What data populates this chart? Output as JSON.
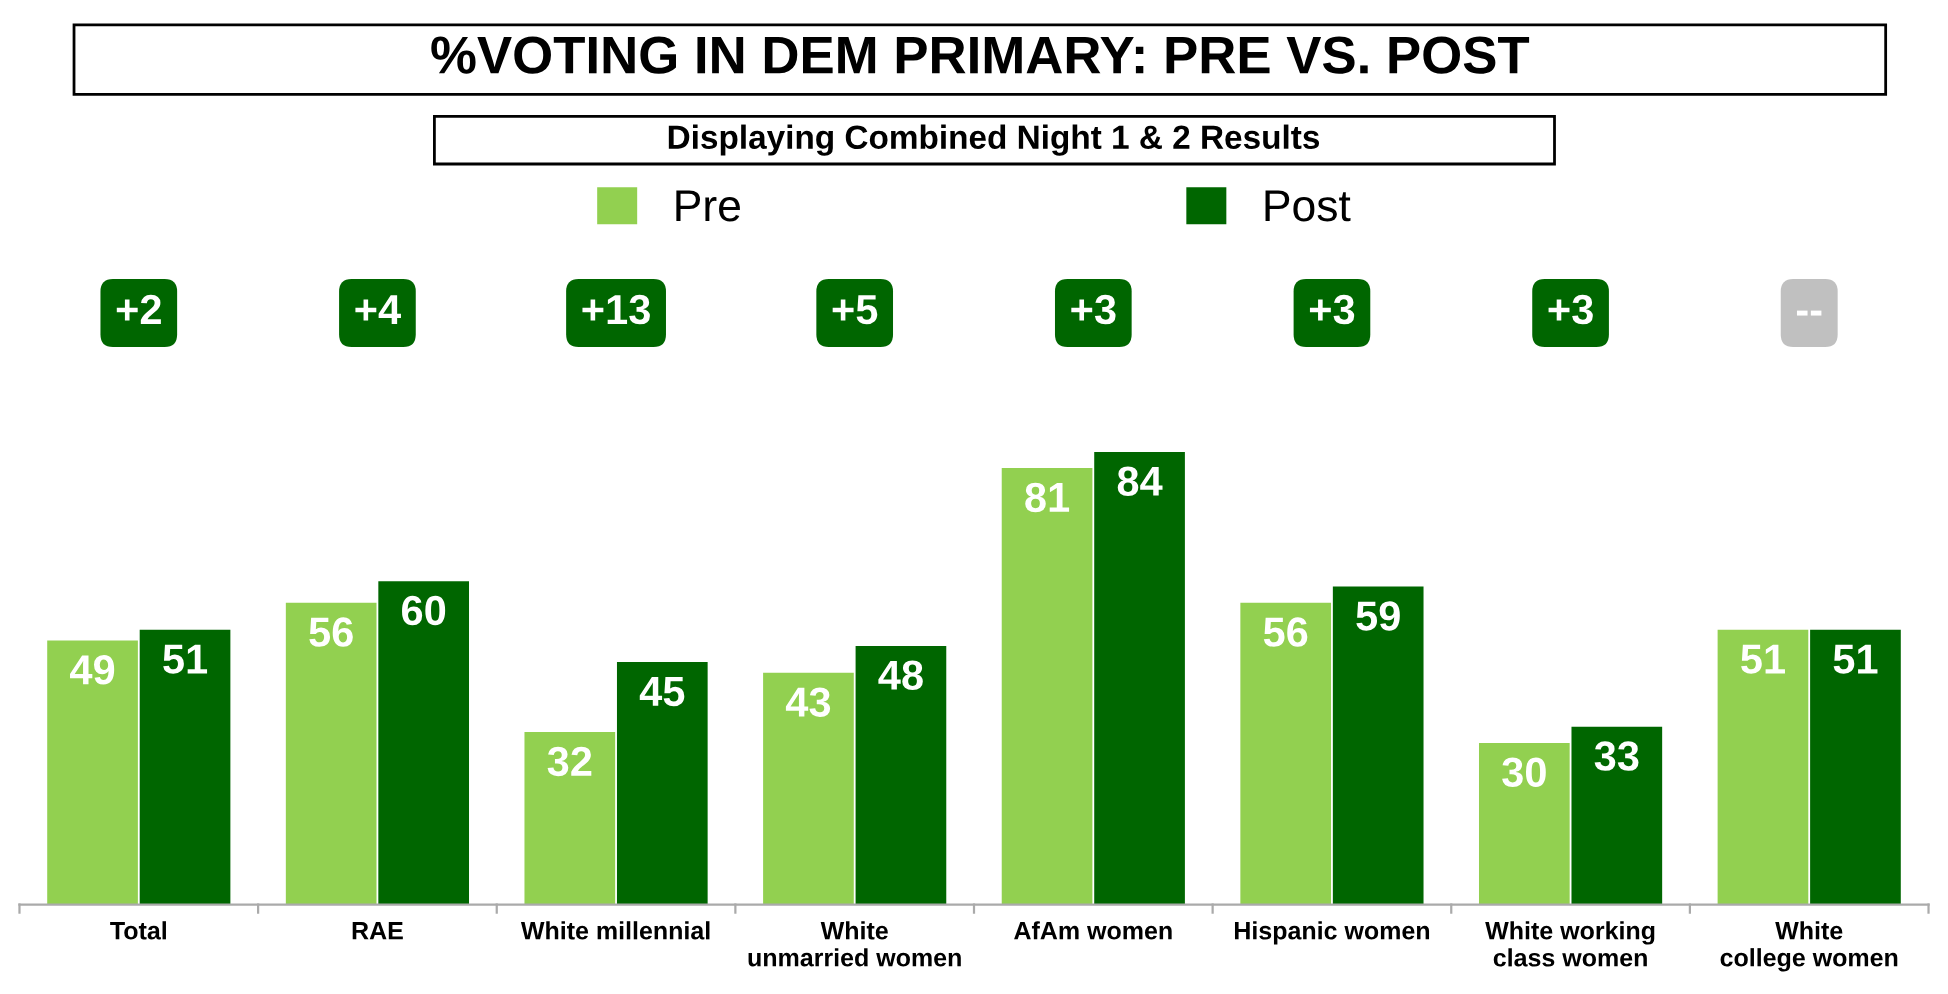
{
  "chart_data": {
    "type": "bar",
    "title": "%VOTING IN DEM PRIMARY: PRE VS. POST",
    "subtitle": "Displaying Combined Night 1 & 2 Results",
    "categories": [
      "Total",
      "RAE",
      "White millennial",
      "White unmarried women",
      "AfAm women",
      "Hispanic women",
      "White working class women",
      "White college women"
    ],
    "series": [
      {
        "name": "Pre",
        "color": "#92d050",
        "values": [
          49,
          56,
          32,
          43,
          81,
          56,
          30,
          51
        ]
      },
      {
        "name": "Post",
        "color": "#006600",
        "values": [
          51,
          60,
          45,
          48,
          84,
          59,
          33,
          51
        ]
      }
    ],
    "annotations": [
      "+2",
      "+4",
      "+13",
      "+5",
      "+3",
      "+3",
      "+3",
      "--"
    ],
    "data_labels": true,
    "legend": "top",
    "grid": false
  }
}
